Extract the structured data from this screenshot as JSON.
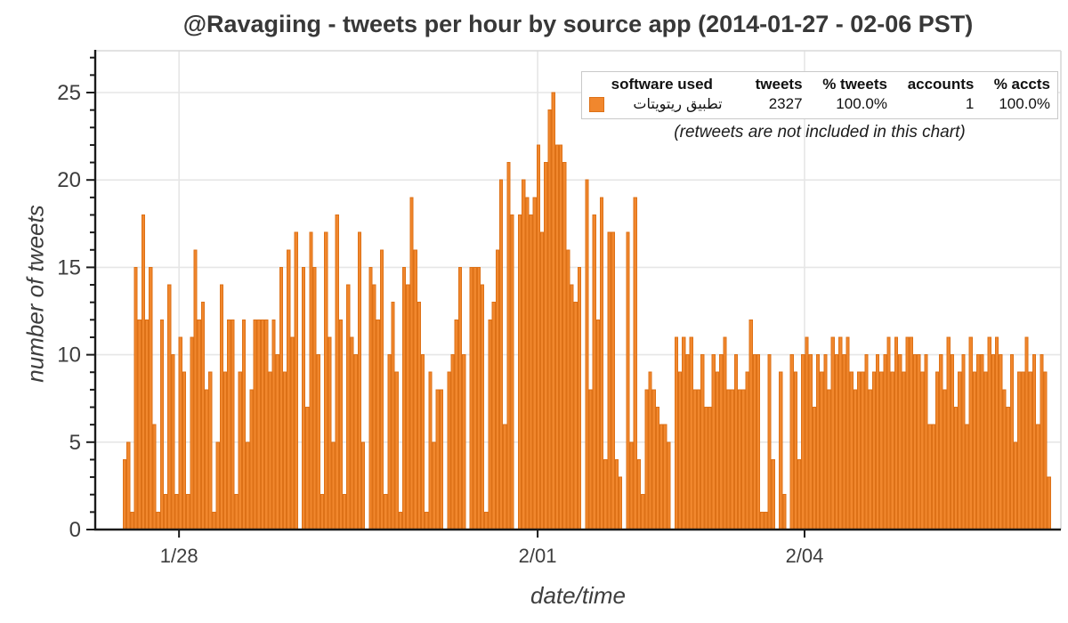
{
  "title": "@Ravagiing - tweets per hour by source app (2014-01-27 - 02-06 PST)",
  "legend": {
    "headers": [
      "software used",
      "tweets",
      "% tweets",
      "accounts",
      "% accts"
    ],
    "row": {
      "software": "تطبيق ريتويتات",
      "tweets": "2327",
      "pct_tweets": "100.0%",
      "accounts": "1",
      "pct_accts": "100.0%"
    },
    "note": "(retweets are not included in this chart)"
  },
  "colors": {
    "bar_fill": "#F1872D",
    "bar_stroke": "#DD7117",
    "grid": "#E6E6E6",
    "border": "#D9D9D9",
    "axis": "#1A1A1A",
    "tick_text": "#3d3d3d"
  },
  "chart_data": {
    "type": "bar",
    "title": "@Ravagiing - tweets per hour by source app (2014-01-27 - 02-06 PST)",
    "xlabel": "date/time",
    "ylabel": "number of tweets",
    "x_unit": "hours starting 2014-01-27 09:00 PST, 1 bar = 1 hour",
    "ylim": [
      0,
      27.4
    ],
    "yticks": [
      0,
      5,
      10,
      15,
      20,
      25
    ],
    "xticks": [
      {
        "label": "1/28",
        "hour_index": 14.6
      },
      {
        "label": "2/01",
        "hour_index": 110.8
      },
      {
        "label": "2/04",
        "hour_index": 182.4
      }
    ],
    "grid": true,
    "legend_position": "top-right",
    "values": [
      4,
      5,
      1,
      15,
      12,
      18,
      12,
      15,
      6,
      1,
      12,
      2,
      14,
      10,
      2,
      11,
      9,
      2,
      11,
      16,
      12,
      13,
      8,
      9,
      1,
      5,
      14,
      9,
      12,
      12,
      2,
      9,
      12,
      5,
      8,
      12,
      12,
      12,
      12,
      9,
      12,
      10,
      15,
      9,
      16,
      11,
      17,
      0,
      15,
      7,
      17,
      15,
      10,
      2,
      17,
      11,
      5,
      18,
      12,
      2,
      14,
      11,
      10,
      17,
      5,
      0,
      15,
      14,
      12,
      16,
      2,
      10,
      13,
      9,
      1,
      15,
      14,
      19,
      16,
      13,
      10,
      1,
      9,
      5,
      8,
      8,
      0,
      9,
      10,
      12,
      15,
      10,
      0,
      15,
      15,
      15,
      14,
      1,
      12,
      13,
      16,
      20,
      6,
      21,
      18,
      0,
      18,
      20,
      19,
      18,
      19,
      22,
      17,
      21,
      24,
      25,
      22,
      22,
      21,
      16,
      14,
      13,
      15,
      0,
      20,
      8,
      18,
      12,
      19,
      4,
      17,
      17,
      4,
      3,
      0,
      17,
      5,
      19,
      4,
      2,
      8,
      9,
      8,
      7,
      6,
      6,
      5,
      0,
      11,
      9,
      11,
      10,
      11,
      8,
      8,
      10,
      7,
      7,
      10,
      9,
      10,
      11,
      8,
      8,
      10,
      8,
      8,
      9,
      12,
      10,
      10,
      1,
      1,
      10,
      4,
      0,
      9,
      2,
      0,
      10,
      9,
      4,
      10,
      11,
      10,
      7,
      10,
      9,
      10,
      8,
      11,
      10,
      11,
      10,
      11,
      9,
      8,
      9,
      9,
      10,
      8,
      9,
      10,
      9,
      10,
      11,
      9,
      11,
      10,
      9,
      11,
      11,
      10,
      10,
      9,
      10,
      6,
      6,
      9,
      10,
      8,
      11,
      10,
      7,
      9,
      10,
      6,
      11,
      9,
      10,
      10,
      9,
      11,
      10,
      11,
      10,
      8,
      7,
      10,
      5,
      9,
      9,
      11,
      9,
      10,
      6,
      10,
      9,
      3
    ]
  }
}
